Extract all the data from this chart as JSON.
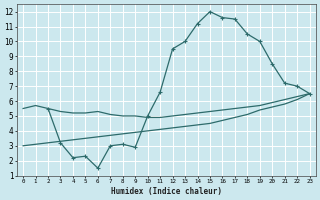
{
  "xlabel": "Humidex (Indice chaleur)",
  "bg_color": "#cce8ee",
  "grid_color": "#ffffff",
  "line_color": "#2d6b6b",
  "xlim": [
    -0.5,
    23.5
  ],
  "ylim": [
    1,
    12.5
  ],
  "xticks": [
    0,
    1,
    2,
    3,
    4,
    5,
    6,
    7,
    8,
    9,
    10,
    11,
    12,
    13,
    14,
    15,
    16,
    17,
    18,
    19,
    20,
    21,
    22,
    23
  ],
  "yticks": [
    1,
    2,
    3,
    4,
    5,
    6,
    7,
    8,
    9,
    10,
    11,
    12
  ],
  "line1_x": [
    0,
    1,
    2,
    3,
    4,
    5,
    6,
    7,
    8,
    9,
    10,
    11,
    12,
    13,
    14,
    15,
    16,
    17,
    18,
    19,
    20,
    21,
    22,
    23
  ],
  "line1_y": [
    5.5,
    5.7,
    5.5,
    5.3,
    5.2,
    5.2,
    5.3,
    5.1,
    5.0,
    5.0,
    4.9,
    4.9,
    5.0,
    5.1,
    5.2,
    5.3,
    5.4,
    5.5,
    5.6,
    5.7,
    5.9,
    6.1,
    6.3,
    6.5
  ],
  "line2_x": [
    2,
    3,
    4,
    5,
    6,
    7,
    8,
    9,
    10,
    11,
    12,
    13,
    14,
    15,
    16,
    17,
    18,
    19,
    20,
    21,
    22,
    23
  ],
  "line2_y": [
    5.5,
    3.2,
    2.2,
    2.3,
    1.5,
    3.0,
    3.1,
    2.9,
    5.0,
    6.6,
    9.5,
    10.0,
    11.2,
    12.0,
    11.6,
    11.5,
    10.5,
    10.0,
    8.5,
    7.2,
    7.0,
    6.5
  ],
  "line3_x": [
    0,
    1,
    2,
    3,
    4,
    5,
    6,
    7,
    8,
    9,
    10,
    11,
    12,
    13,
    14,
    15,
    16,
    17,
    18,
    19,
    20,
    21,
    22,
    23
  ],
  "line3_y": [
    3.0,
    3.1,
    3.2,
    3.3,
    3.4,
    3.5,
    3.6,
    3.7,
    3.8,
    3.9,
    4.0,
    4.1,
    4.2,
    4.3,
    4.4,
    4.5,
    4.7,
    4.9,
    5.1,
    5.4,
    5.6,
    5.8,
    6.1,
    6.5
  ]
}
